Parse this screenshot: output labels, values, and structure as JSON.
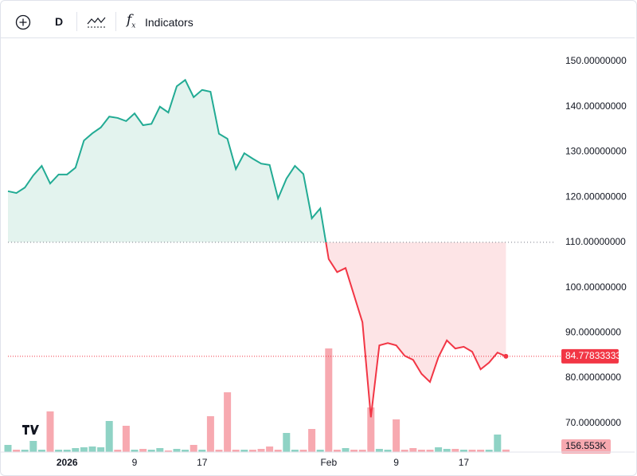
{
  "toolbar": {
    "interval": "D",
    "indicators": "Indicators"
  },
  "chart_data": {
    "type": "baseline",
    "categories": [
      null,
      null,
      null,
      null,
      null,
      null,
      null,
      "2026",
      null,
      null,
      null,
      null,
      null,
      null,
      null,
      "9",
      null,
      null,
      null,
      null,
      null,
      null,
      null,
      "17",
      null,
      null,
      null,
      null,
      null,
      null,
      null,
      null,
      null,
      null,
      null,
      null,
      null,
      null,
      "Feb",
      null,
      null,
      null,
      null,
      null,
      null,
      null,
      "9",
      null,
      null,
      null,
      null,
      null,
      null,
      null,
      "17",
      null,
      null,
      null,
      null,
      null
    ],
    "values": [
      121.3,
      120.9,
      122.1,
      124.8,
      126.9,
      123.0,
      125.0,
      125.0,
      126.5,
      132.5,
      134.1,
      135.4,
      137.8,
      137.5,
      136.8,
      138.5,
      135.9,
      136.2,
      140.0,
      138.7,
      144.5,
      145.9,
      142.1,
      143.7,
      143.3,
      134.0,
      132.9,
      126.2,
      129.7,
      128.5,
      127.4,
      127.1,
      119.7,
      124.1,
      126.9,
      125.1,
      115.3,
      117.5,
      106.3,
      103.4,
      104.3,
      98.3,
      92.3,
      71.3,
      87.2,
      87.7,
      87.2,
      84.9,
      84.0,
      80.9,
      79.1,
      84.6,
      88.3,
      86.5,
      86.9,
      85.8,
      81.9,
      83.4,
      85.6,
      84.77833333
    ],
    "baseline": 110,
    "ylim": [
      63.6,
      155.3
    ],
    "yticks": [
      {
        "value": 150,
        "label": "150.00000000"
      },
      {
        "value": 140,
        "label": "140.00000000"
      },
      {
        "value": 130,
        "label": "130.00000000"
      },
      {
        "value": 120,
        "label": "120.00000000"
      },
      {
        "value": 110,
        "label": "110.00000000"
      },
      {
        "value": 100,
        "label": "100.00000000"
      },
      {
        "value": 90,
        "label": "90.00000000"
      },
      {
        "value": 80,
        "label": "80.00000000"
      },
      {
        "value": 70,
        "label": "70.00000000"
      }
    ],
    "grid": false,
    "colors": {
      "above_line": "#22ab94",
      "above_fill": "#e3f3ee",
      "below_line": "#f23645",
      "below_fill": "#fde4e6"
    },
    "volume": {
      "values": [
        450,
        150,
        150,
        700,
        150,
        2550,
        150,
        150,
        250,
        300,
        350,
        300,
        1950,
        150,
        1650,
        150,
        200,
        150,
        250,
        100,
        200,
        150,
        450,
        150,
        2250,
        150,
        3750,
        150,
        150,
        150,
        200,
        350,
        150,
        1200,
        150,
        150,
        1450,
        150,
        6500,
        150,
        250,
        150,
        150,
        2800,
        200,
        150,
        2050,
        150,
        250,
        150,
        150,
        300,
        200,
        200,
        150,
        150,
        150,
        150,
        1100,
        156.553
      ],
      "value_labels": [
        null,
        null,
        null,
        null,
        null,
        null,
        null,
        null,
        null,
        null,
        null,
        null,
        null,
        null,
        null,
        null,
        null,
        null,
        null,
        null,
        null,
        null,
        null,
        null,
        null,
        null,
        null,
        null,
        null,
        null,
        null,
        null,
        null,
        null,
        null,
        null,
        null,
        null,
        null,
        null,
        null,
        null,
        null,
        null,
        null,
        null,
        null,
        null,
        null,
        null,
        null,
        null,
        null,
        null,
        null,
        null,
        null,
        null,
        null,
        "156.553K"
      ],
      "ylim": [
        0,
        26000
      ],
      "up_color": "#8fd3c5",
      "down_color": "#f7a9b0"
    }
  }
}
